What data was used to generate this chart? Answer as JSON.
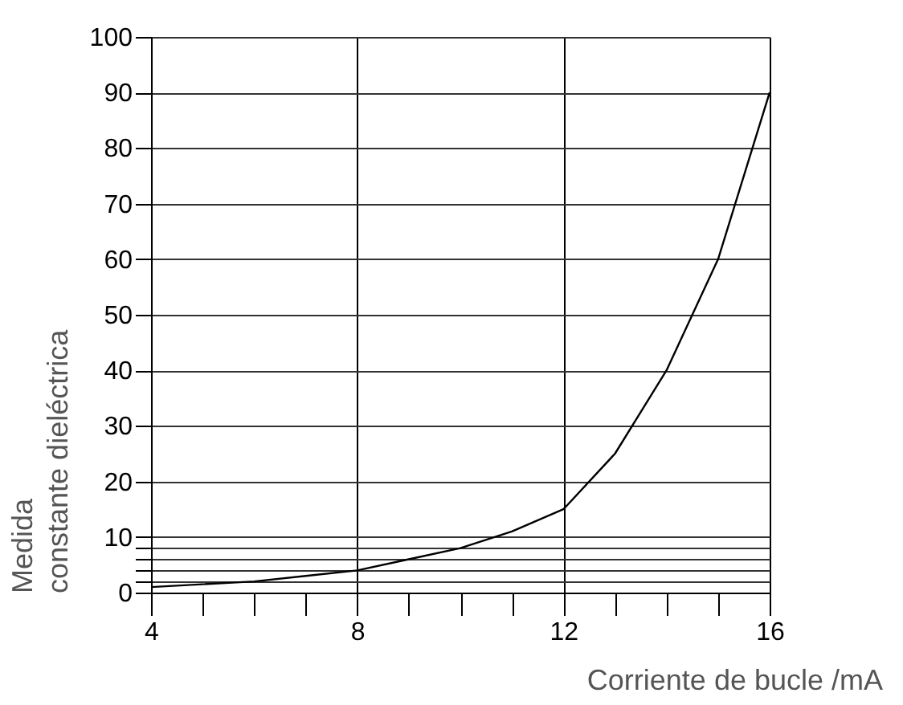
{
  "chart_data": {
    "type": "line",
    "xlabel": "Corriente de bucle  /mA",
    "ylabel": "Medida\nconstante dieléctrica",
    "x": [
      4,
      5,
      6,
      7,
      8,
      9,
      10,
      11,
      12,
      13,
      14,
      15,
      16
    ],
    "series": [
      {
        "color": "#000000",
        "values": [
          1,
          1.5,
          2,
          3,
          4,
          6,
          8,
          11,
          15,
          25,
          40,
          60,
          90
        ]
      }
    ],
    "xlim": [
      4,
      16
    ],
    "xticks": [
      4,
      {
        "value": 5,
        "label": null
      },
      {
        "value": 6,
        "label": null
      },
      {
        "value": 7,
        "label": null
      },
      8,
      {
        "value": 9,
        "label": null
      },
      {
        "value": 10,
        "label": null
      },
      {
        "value": 11,
        "label": null
      },
      12,
      {
        "value": 13,
        "label": null
      },
      {
        "value": 14,
        "label": null
      },
      {
        "value": 15,
        "label": null
      },
      16
    ],
    "ylim": [
      0,
      100
    ],
    "yticks": [
      0,
      {
        "value": 2,
        "label": null
      },
      {
        "value": 4,
        "label": null
      },
      {
        "value": 6,
        "label": null
      },
      {
        "value": 8,
        "label": null
      },
      10,
      20,
      30,
      40,
      50,
      60,
      70,
      80,
      90,
      100
    ],
    "grid": true,
    "marker": "none",
    "line_style": "solid",
    "legend": false
  }
}
